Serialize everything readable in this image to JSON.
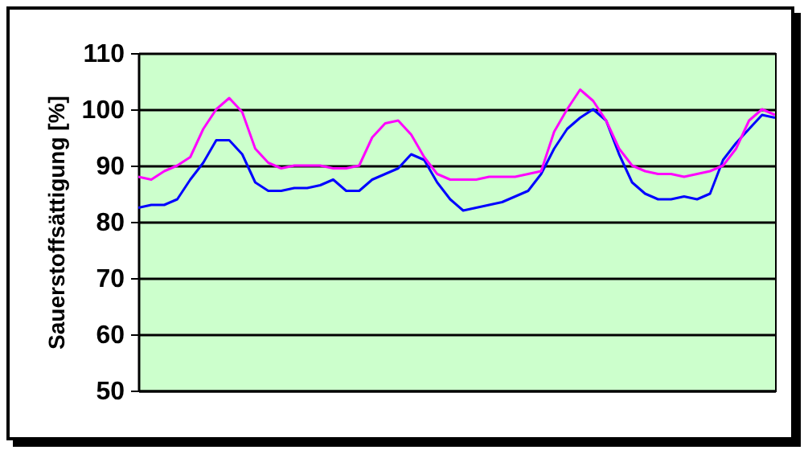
{
  "chart_data": {
    "type": "line",
    "ylabel": "Sauerstoffsättigung [%]",
    "categories": [
      null,
      null,
      null,
      null,
      null,
      null,
      null,
      null,
      null,
      null,
      null,
      null,
      null,
      null,
      null,
      null,
      null,
      null,
      null,
      null,
      null,
      null,
      null,
      null,
      null,
      null,
      null,
      null,
      null,
      null,
      null,
      null,
      null,
      null,
      null,
      null,
      null,
      null,
      null,
      null,
      null,
      null,
      null,
      null,
      null,
      null,
      null,
      null,
      null,
      null
    ],
    "series": [
      {
        "color": "#0000ff",
        "values": [
          82.5,
          83,
          83,
          84,
          87.5,
          90.5,
          94.5,
          94.5,
          92,
          87,
          85.5,
          85.5,
          86,
          86,
          86.5,
          87.5,
          85.5,
          85.5,
          87.5,
          88.5,
          89.5,
          92,
          91,
          87,
          84,
          82,
          82.5,
          83,
          83.5,
          84.5,
          85.5,
          88.5,
          93,
          96.5,
          98.5,
          100,
          98,
          92,
          87,
          85,
          84,
          84,
          84.5,
          84,
          85,
          91,
          94,
          96.5,
          99,
          98.5
        ]
      },
      {
        "color": "#ff00ff",
        "values": [
          88,
          87.5,
          89,
          90,
          91.5,
          96.5,
          100,
          102,
          99.5,
          93,
          90.5,
          89.5,
          90,
          90,
          90,
          89.5,
          89.5,
          90,
          95,
          97.5,
          98,
          95.5,
          91.5,
          88.5,
          87.5,
          87.5,
          87.5,
          88,
          88,
          88,
          88.5,
          89,
          96,
          100,
          103.5,
          101.5,
          98,
          93,
          90,
          89,
          88.5,
          88.5,
          88,
          88.5,
          89,
          90,
          93,
          98,
          100,
          99
        ]
      }
    ],
    "ylim": [
      50,
      110
    ],
    "yticks": [
      50,
      60,
      70,
      80,
      90,
      100,
      110
    ],
    "grid": "y",
    "tick_labels": "y",
    "legend": false,
    "marker": "none",
    "line_style": "solid"
  }
}
